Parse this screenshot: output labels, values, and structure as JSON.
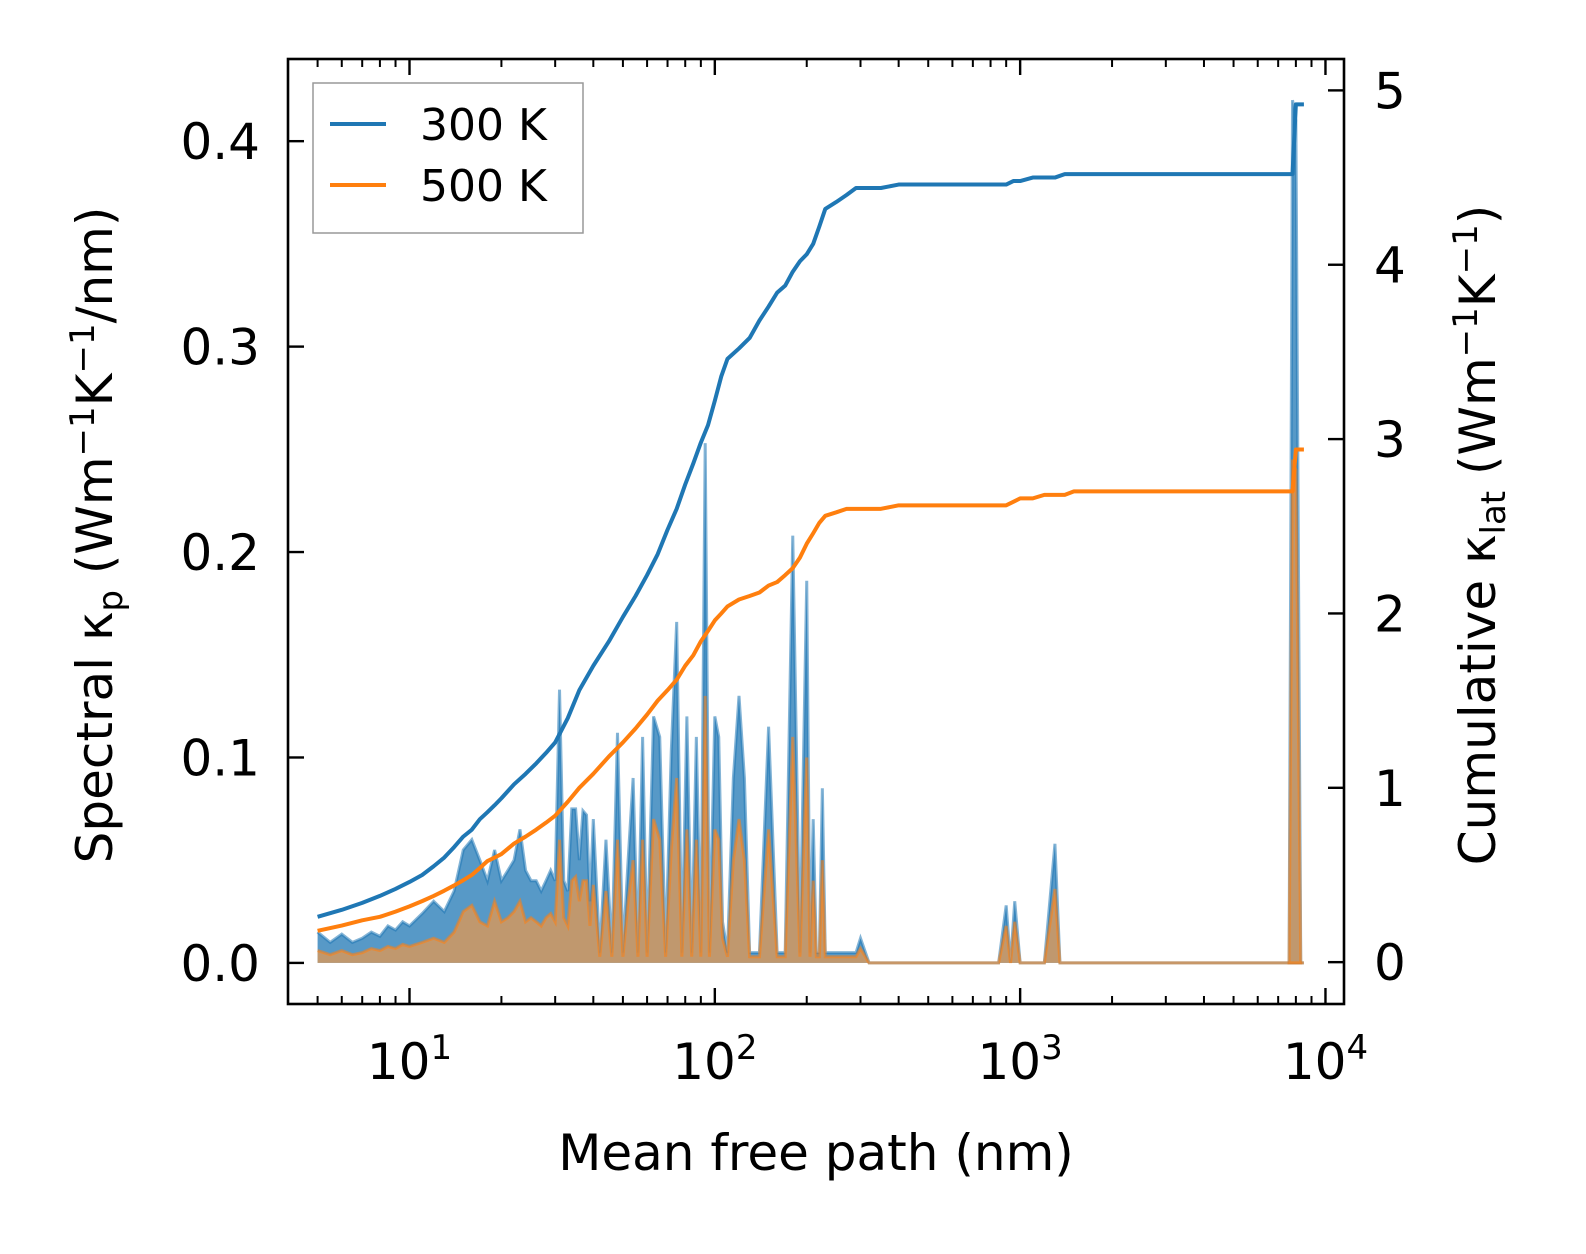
{
  "chart_data": {
    "type": "line",
    "xscale": "log",
    "xlabel": "Mean free path (nm)",
    "xlim": [
      4,
      11500
    ],
    "x_ticks": [
      {
        "value": 10,
        "base": "10",
        "exp": "1"
      },
      {
        "value": 100,
        "base": "10",
        "exp": "2"
      },
      {
        "value": 1000,
        "base": "10",
        "exp": "3"
      },
      {
        "value": 10000,
        "base": "10",
        "exp": "4"
      }
    ],
    "left_axis": {
      "label": {
        "prefix": "Spectral κ",
        "sub": "p",
        "units_open": " (Wm",
        "sup1": "−1",
        "mid": "K",
        "sup2": "−1",
        "units_close": "/nm)"
      },
      "ylim": [
        -0.02,
        0.44
      ],
      "ticks": [
        0.0,
        0.1,
        0.2,
        0.3,
        0.4
      ],
      "tick_labels": [
        "0.0",
        "0.1",
        "0.2",
        "0.3",
        "0.4"
      ]
    },
    "right_axis": {
      "label": {
        "prefix": "Cumulative κ",
        "sub": "lat",
        "units_open": " (Wm",
        "sup1": "−1",
        "mid": "K",
        "sup2": "−1",
        "units_close": ")"
      },
      "ylim": [
        -0.24,
        5.18
      ],
      "ticks": [
        0,
        1,
        2,
        3,
        4,
        5
      ],
      "tick_labels": [
        "0",
        "1",
        "2",
        "3",
        "4",
        "5"
      ]
    },
    "colors": {
      "series_300": "#1f77b4",
      "series_500": "#ff7f0e",
      "fill_300": "#1f77b4",
      "fill_500": "#d2985e"
    },
    "legend": {
      "position": "top-left",
      "entries": [
        "300 K",
        "500 K"
      ]
    },
    "series": [
      {
        "name": "300 K",
        "cumulative": {
          "x": [
            5,
            6,
            7,
            8,
            9,
            10,
            11,
            12,
            13,
            14,
            15,
            16,
            17,
            18,
            19,
            20,
            22,
            24,
            26,
            28,
            30,
            33,
            36,
            40,
            45,
            50,
            55,
            60,
            65,
            70,
            75,
            80,
            85,
            90,
            95,
            100,
            105,
            110,
            120,
            130,
            140,
            150,
            160,
            170,
            180,
            190,
            200,
            210,
            220,
            230,
            250,
            270,
            290,
            300,
            350,
            400,
            500,
            600,
            700,
            800,
            900,
            950,
            1000,
            1100,
            1200,
            1300,
            1400,
            1500,
            2000,
            3000,
            5000,
            7500,
            7800,
            8000,
            8500
          ],
          "y": [
            0.26,
            0.3,
            0.34,
            0.38,
            0.42,
            0.46,
            0.5,
            0.55,
            0.6,
            0.66,
            0.72,
            0.76,
            0.82,
            0.86,
            0.9,
            0.94,
            1.02,
            1.08,
            1.14,
            1.2,
            1.26,
            1.4,
            1.56,
            1.7,
            1.84,
            1.98,
            2.1,
            2.22,
            2.34,
            2.48,
            2.6,
            2.74,
            2.86,
            2.98,
            3.08,
            3.22,
            3.36,
            3.46,
            3.52,
            3.58,
            3.68,
            3.76,
            3.84,
            3.88,
            3.96,
            4.02,
            4.06,
            4.12,
            4.22,
            4.32,
            4.36,
            4.4,
            4.44,
            4.44,
            4.44,
            4.46,
            4.46,
            4.46,
            4.46,
            4.46,
            4.46,
            4.48,
            4.48,
            4.5,
            4.5,
            4.5,
            4.52,
            4.52,
            4.52,
            4.52,
            4.52,
            4.52,
            4.52,
            4.92,
            4.92
          ]
        },
        "spectral": {
          "x": [
            5,
            5.5,
            6,
            6.5,
            7,
            7.5,
            8,
            8.5,
            9,
            9.5,
            10,
            11,
            12,
            13,
            14,
            15,
            16,
            17,
            18,
            19,
            20,
            21,
            22,
            23,
            24,
            25,
            26,
            27,
            28,
            29,
            30,
            31,
            32,
            33,
            34,
            35,
            36,
            37,
            38,
            39,
            40,
            42,
            44,
            46,
            48,
            50,
            52,
            54,
            56,
            58,
            60,
            63,
            66,
            69,
            72,
            75,
            78,
            81,
            84,
            87,
            90,
            93,
            96,
            100,
            103,
            106,
            110,
            115,
            120,
            125,
            130,
            140,
            150,
            160,
            170,
            180,
            190,
            200,
            205,
            210,
            215,
            220,
            225,
            230,
            240,
            250,
            260,
            270,
            280,
            290,
            300,
            320,
            350,
            380,
            400,
            420,
            450,
            500,
            600,
            700,
            800,
            850,
            900,
            930,
            960,
            1000,
            1030,
            1060,
            1100,
            1200,
            1300,
            1350,
            1400,
            1450,
            1500,
            2000,
            3000,
            5000,
            7500,
            7700,
            7900,
            8100,
            8300,
            8500
          ],
          "y": [
            0.015,
            0.01,
            0.014,
            0.01,
            0.012,
            0.015,
            0.013,
            0.018,
            0.016,
            0.02,
            0.018,
            0.024,
            0.03,
            0.025,
            0.035,
            0.055,
            0.06,
            0.05,
            0.04,
            0.055,
            0.04,
            0.045,
            0.05,
            0.065,
            0.045,
            0.04,
            0.04,
            0.035,
            0.04,
            0.045,
            0.04,
            0.133,
            0.04,
            0.035,
            0.075,
            0.075,
            0.05,
            0.074,
            0.072,
            0.03,
            0.07,
            0.005,
            0.06,
            0.005,
            0.112,
            0.005,
            0.05,
            0.09,
            0.005,
            0.11,
            0.005,
            0.12,
            0.11,
            0.005,
            0.103,
            0.166,
            0.005,
            0.12,
            0.005,
            0.11,
            0.005,
            0.253,
            0.005,
            0.12,
            0.11,
            0.02,
            0.005,
            0.09,
            0.13,
            0.09,
            0.005,
            0.005,
            0.115,
            0.005,
            0.005,
            0.208,
            0.005,
            0.186,
            0.005,
            0.07,
            0.005,
            0.005,
            0.085,
            0.005,
            0.005,
            0.005,
            0.005,
            0.005,
            0.005,
            0.005,
            0.012,
            0.0,
            0.0,
            0.0,
            0.0,
            0.0,
            0.0,
            0.0,
            0.0,
            0.0,
            0.0,
            0.0,
            0.028,
            0.0,
            0.03,
            0.0,
            0.0,
            0.0,
            0.0,
            0.0,
            0.058,
            0.0,
            0.0,
            0.0,
            0.0,
            0.0,
            0.0,
            0.0,
            0.0,
            0.0,
            0.0,
            0.0,
            0.0,
            0.0
          ],
          "spike": [
            {
              "x": 7600,
              "y": 0.0
            },
            {
              "x": 7800,
              "y": 0.42
            },
            {
              "x": 8000,
              "y": 0.41
            },
            {
              "x": 8300,
              "y": 0.0
            }
          ]
        }
      },
      {
        "name": "500 K",
        "cumulative": {
          "x": [
            5,
            6,
            7,
            8,
            9,
            10,
            11,
            12,
            13,
            14,
            15,
            16,
            17,
            18,
            19,
            20,
            22,
            24,
            26,
            28,
            30,
            33,
            36,
            40,
            45,
            50,
            55,
            60,
            65,
            70,
            75,
            80,
            85,
            90,
            95,
            100,
            105,
            110,
            120,
            130,
            140,
            150,
            160,
            170,
            180,
            190,
            200,
            210,
            220,
            230,
            250,
            270,
            290,
            300,
            350,
            400,
            500,
            600,
            700,
            800,
            900,
            950,
            1000,
            1100,
            1200,
            1300,
            1400,
            1500,
            2000,
            3000,
            5000,
            7500,
            7800,
            8000,
            8500
          ],
          "y": [
            0.18,
            0.21,
            0.24,
            0.26,
            0.29,
            0.32,
            0.35,
            0.38,
            0.41,
            0.44,
            0.47,
            0.5,
            0.54,
            0.58,
            0.6,
            0.62,
            0.68,
            0.72,
            0.76,
            0.8,
            0.84,
            0.92,
            1.0,
            1.08,
            1.18,
            1.26,
            1.34,
            1.42,
            1.5,
            1.56,
            1.62,
            1.7,
            1.76,
            1.84,
            1.9,
            1.96,
            2.0,
            2.04,
            2.08,
            2.1,
            2.12,
            2.16,
            2.18,
            2.22,
            2.26,
            2.32,
            2.4,
            2.46,
            2.52,
            2.56,
            2.58,
            2.6,
            2.6,
            2.6,
            2.6,
            2.62,
            2.62,
            2.62,
            2.62,
            2.62,
            2.62,
            2.64,
            2.66,
            2.66,
            2.68,
            2.68,
            2.68,
            2.7,
            2.7,
            2.7,
            2.7,
            2.7,
            2.7,
            2.94,
            2.94
          ]
        },
        "spectral": {
          "x": [
            5,
            5.5,
            6,
            6.5,
            7,
            7.5,
            8,
            8.5,
            9,
            9.5,
            10,
            11,
            12,
            13,
            14,
            15,
            16,
            17,
            18,
            19,
            20,
            21,
            22,
            23,
            24,
            25,
            26,
            27,
            28,
            29,
            30,
            31,
            32,
            33,
            34,
            35,
            36,
            37,
            38,
            39,
            40,
            42,
            44,
            46,
            48,
            50,
            52,
            54,
            56,
            58,
            60,
            63,
            66,
            69,
            72,
            75,
            78,
            81,
            84,
            87,
            90,
            93,
            96,
            100,
            103,
            106,
            110,
            115,
            120,
            125,
            130,
            140,
            150,
            160,
            170,
            180,
            190,
            200,
            205,
            210,
            215,
            220,
            225,
            230,
            240,
            250,
            260,
            270,
            280,
            290,
            300,
            320,
            350,
            380,
            400,
            420,
            450,
            500,
            600,
            700,
            800,
            850,
            900,
            930,
            960,
            1000,
            1030,
            1060,
            1100,
            1200,
            1300,
            1350,
            1400,
            1450,
            1500,
            2000,
            3000,
            5000,
            7500,
            7700,
            7900,
            8100,
            8300,
            8500
          ],
          "y": [
            0.006,
            0.004,
            0.006,
            0.004,
            0.005,
            0.007,
            0.006,
            0.008,
            0.007,
            0.009,
            0.008,
            0.01,
            0.012,
            0.01,
            0.015,
            0.025,
            0.028,
            0.02,
            0.018,
            0.03,
            0.02,
            0.022,
            0.025,
            0.03,
            0.02,
            0.022,
            0.02,
            0.018,
            0.022,
            0.024,
            0.02,
            0.06,
            0.022,
            0.018,
            0.04,
            0.042,
            0.03,
            0.04,
            0.04,
            0.018,
            0.038,
            0.003,
            0.035,
            0.003,
            0.06,
            0.003,
            0.03,
            0.05,
            0.003,
            0.06,
            0.003,
            0.07,
            0.06,
            0.003,
            0.055,
            0.09,
            0.003,
            0.065,
            0.003,
            0.06,
            0.003,
            0.13,
            0.003,
            0.065,
            0.06,
            0.012,
            0.003,
            0.05,
            0.07,
            0.05,
            0.003,
            0.003,
            0.065,
            0.003,
            0.003,
            0.11,
            0.003,
            0.1,
            0.003,
            0.04,
            0.003,
            0.003,
            0.05,
            0.003,
            0.003,
            0.003,
            0.003,
            0.003,
            0.003,
            0.003,
            0.007,
            0.0,
            0.0,
            0.0,
            0.0,
            0.0,
            0.0,
            0.0,
            0.0,
            0.0,
            0.0,
            0.0,
            0.018,
            0.0,
            0.02,
            0.0,
            0.0,
            0.0,
            0.0,
            0.0,
            0.036,
            0.0,
            0.0,
            0.0,
            0.0,
            0.0,
            0.0,
            0.0,
            0.0,
            0.0,
            0.0,
            0.0,
            0.0,
            0.0
          ],
          "spike": [
            {
              "x": 7600,
              "y": 0.0
            },
            {
              "x": 7800,
              "y": 0.245
            },
            {
              "x": 8000,
              "y": 0.24
            },
            {
              "x": 8300,
              "y": 0.0
            }
          ]
        }
      }
    ]
  }
}
